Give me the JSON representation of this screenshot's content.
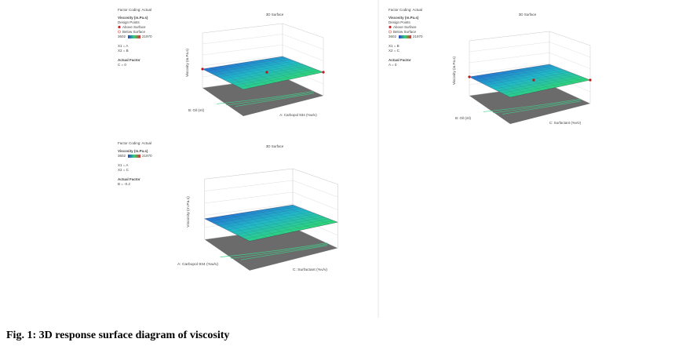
{
  "panels": [
    {
      "factor_coding": "Factor Coding: Actual",
      "title": "3D Surface",
      "response": "Viscosity (m.Pa.s)",
      "design_points": "Design Points",
      "above": "Above Surface",
      "below": "Below Surface",
      "low": "3602",
      "high": "21970",
      "x1": "X1 = A",
      "x2": "X2 = B",
      "actual_factor": "Actual Factor",
      "actual_value": "C = 0",
      "z_label": "Viscosity (m.Pa.s)",
      "left_axis": "B: Oil (ml)",
      "right_axis": "A: Carbopol 934 (%w/v)"
    },
    {
      "factor_coding": "Factor Coding: Actual",
      "title": "3D Surface",
      "response": "Viscosity (m.Pa.s)",
      "design_points": "Design Points",
      "above": "Above Surface",
      "below": "Below Surface",
      "low": "3602",
      "high": "21970",
      "x1": "X1 = B",
      "x2": "X2 = C",
      "actual_factor": "Actual Factor",
      "actual_value": "A = 0",
      "z_label": "Viscosity (m.Pa.s)",
      "left_axis": "B: Oil (ml)",
      "right_axis": "C: Surfactant (%v/v)"
    },
    {
      "factor_coding": "Factor Coding: Actual",
      "title": "3D Surface",
      "response": "Viscosity (m.Pa.s)",
      "low": "3602",
      "high": "21970",
      "x1": "X1 = A",
      "x2": "X2 = C",
      "actual_factor": "Actual Factor",
      "actual_value": "B = -0.2",
      "z_label": "Viscosity (m.Pa.s)",
      "left_axis": "A: Carbopol 934 (%w/v)",
      "right_axis": "C: Surfactant (%v/v)"
    }
  ],
  "caption": "Fig. 1: 3D response surface diagram of viscosity"
}
